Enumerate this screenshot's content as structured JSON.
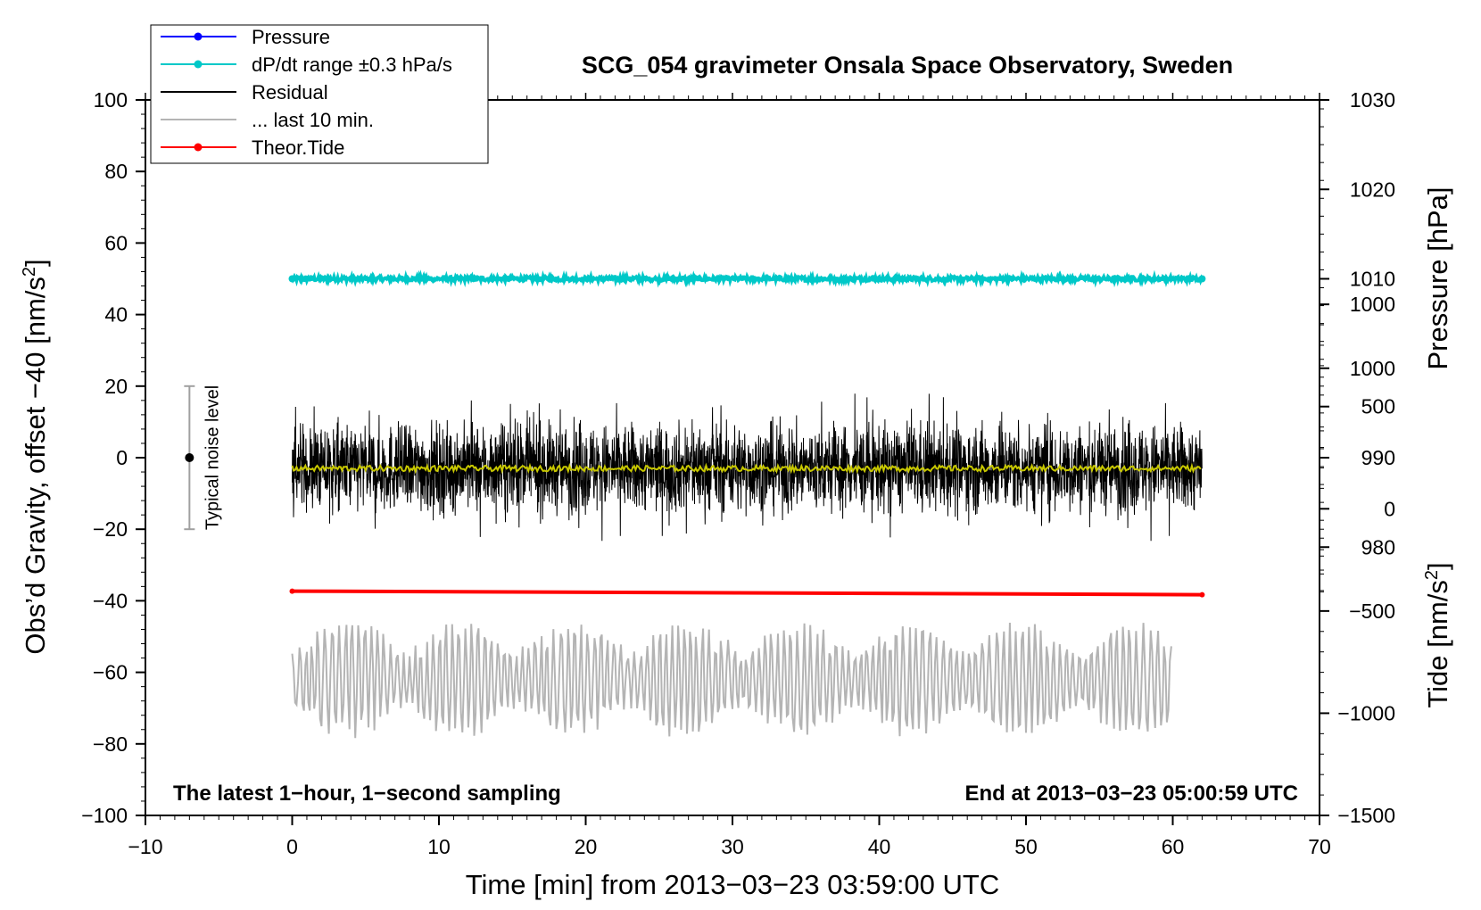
{
  "chart_data": {
    "type": "line",
    "title": "SCG_054 gravimeter Onsala Space Observatory, Sweden",
    "xlabel": "Time [min] from 2013−03−23 03:59:00 UTC",
    "ylabel": "Obs’d Gravity, offset −40 [nm/s²]",
    "ylabel_main": "Obs’d Gravity, offset −40 [nm/s",
    "ylabel_sup": "2",
    "ylabel_close": "]",
    "xlim": [
      -10,
      70
    ],
    "ylim": [
      -100,
      100
    ],
    "x_ticks": [
      -10,
      0,
      10,
      20,
      30,
      40,
      50,
      60,
      70
    ],
    "x_tick_labels": [
      "−10",
      "0",
      "10",
      "20",
      "30",
      "40",
      "50",
      "60",
      "70"
    ],
    "y_ticks": [
      -100,
      -80,
      -60,
      -40,
      -20,
      0,
      20,
      40,
      60,
      80,
      100
    ],
    "y_tick_labels": [
      "−100",
      "−80",
      "−60",
      "−40",
      "−20",
      "0",
      "20",
      "40",
      "60",
      "80",
      "100"
    ],
    "right_axis_pressure": {
      "label": "Pressure [hPa]",
      "ticks": [
        980,
        990,
        1000,
        1010,
        1020,
        1030
      ],
      "tick_labels": [
        "980",
        "990",
        "1000",
        "1010",
        "1020",
        "1030"
      ],
      "range": [
        950,
        1030
      ]
    },
    "right_axis_tide": {
      "label": "Tide [nm/s²]",
      "label_main": "Tide [nm/s",
      "label_sup": "2",
      "label_close": "]",
      "ticks": [
        -1500,
        -1000,
        -500,
        0,
        500,
        1000
      ],
      "tick_labels": [
        "−1500",
        "−1000",
        "−500",
        "0",
        "500",
        "1000"
      ],
      "range": [
        -1500,
        2000
      ]
    },
    "legend": [
      {
        "label": "Pressure",
        "color": "#0000ff",
        "marker": true
      },
      {
        "label": "dP/dt range ±0.3 hPa/s",
        "color": "#00c8c8",
        "marker": true
      },
      {
        "label": "Residual",
        "color": "#000000",
        "marker": false
      },
      {
        "label": "... last 10 min.",
        "color": "#b4b4b4",
        "marker": false
      },
      {
        "label": "Theor.Tide",
        "color": "#ff0000",
        "marker": true
      }
    ],
    "legend_position": "top-left",
    "series": [
      {
        "name": "dP/dt range ±0.3 hPa/s",
        "color": "#00c8c8",
        "x_start": 0,
        "x_end": 62,
        "y_center": 50,
        "half_width": 0.6
      },
      {
        "name": "Residual",
        "color": "#000000",
        "x_start": 0,
        "x_end": 62,
        "y_mean": -3,
        "y_min": -27,
        "y_max": 18,
        "typical_spread": 11
      },
      {
        "name": "Residual running mean",
        "color": "#c8c800",
        "x_start": 0,
        "x_end": 62,
        "y_mean": -3
      },
      {
        "name": "Theor.Tide",
        "color": "#ff0000",
        "x": [
          0,
          62
        ],
        "y": [
          -37.3,
          -38.3
        ]
      },
      {
        "name": "... last 10 min.",
        "color": "#b4b4b4",
        "x_start": 0,
        "x_end": 60,
        "y_mean": -62,
        "y_min": -80,
        "y_max": -45
      }
    ],
    "noise_marker": {
      "x": -7,
      "y": 0,
      "y_low": -20,
      "y_high": 20,
      "label": "Typical noise level"
    },
    "annotations": {
      "left": "The latest 1−hour, 1−second sampling",
      "right": "End at 2013−03−23 05:00:59 UTC"
    }
  }
}
